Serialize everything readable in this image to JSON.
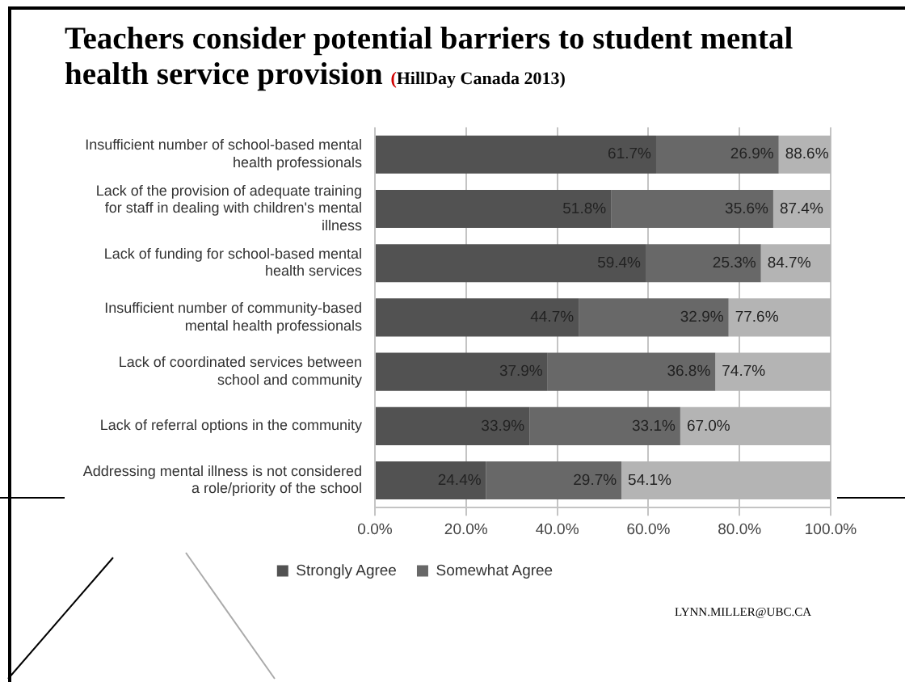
{
  "chart_data": {
    "type": "bar",
    "orientation": "horizontal",
    "stacked": true,
    "title": "Teachers consider potential barriers to student mental health service provision",
    "subtitle": "(HillDay Canada 2013)",
    "categories": [
      "Insufficient number of school-based mental health professionals",
      "Lack of the provision of adequate training for staff in dealing with children's mental illness",
      "Lack of funding for school-based mental health services",
      "Insufficient number of community-based mental health professionals",
      "Lack of coordinated services between school and community",
      "Lack of referral options in the community",
      "Addressing mental illness is not considered a role/priority of the school"
    ],
    "series": [
      {
        "name": "Strongly Agree",
        "color": "#525252",
        "values": [
          61.7,
          51.8,
          59.4,
          44.7,
          37.9,
          33.9,
          24.4
        ],
        "value_labels": [
          "61.7%",
          "51.8%",
          "59.4%",
          "44.7%",
          "37.9%",
          "33.9%",
          "24.4%"
        ]
      },
      {
        "name": "Somewhat Agree",
        "color": "#686868",
        "values": [
          26.9,
          35.6,
          25.3,
          32.9,
          36.8,
          33.1,
          29.7
        ],
        "value_labels": [
          "26.9%",
          "35.6%",
          "25.3%",
          "32.9%",
          "36.8%",
          "33.1%",
          "29.7%"
        ]
      },
      {
        "color": "#b4b4b4",
        "values": [
          11.4,
          12.6,
          15.3,
          22.4,
          25.3,
          33.0,
          45.9
        ]
      }
    ],
    "xlim": [
      0,
      100
    ],
    "xticks": [
      {
        "value": 0,
        "label": "0.0%"
      },
      {
        "value": 20,
        "label": "20.0%"
      },
      {
        "value": 40,
        "label": "40.0%"
      },
      {
        "value": 60,
        "label": "60.0%"
      },
      {
        "value": 80,
        "label": "80.0%"
      },
      {
        "value": 100,
        "label": "100.0%"
      }
    ],
    "grid": "x",
    "legend": "bottom",
    "annotations": [
      {
        "text": "88.6%",
        "x": 88.6,
        "y": "Insufficient number of school-based mental health professionals"
      },
      {
        "text": "87.4%",
        "x": 87.4,
        "y": "Lack of the provision of adequate training for staff in dealing with children's mental illness"
      },
      {
        "text": "84.7%",
        "x": 84.7,
        "y": "Lack of funding for school-based mental health services"
      },
      {
        "text": "77.6%",
        "x": 77.6,
        "y": "Insufficient number of community-based mental health professionals"
      },
      {
        "text": "74.7%",
        "x": 74.7,
        "y": "Lack of coordinated services between school and community"
      },
      {
        "text": "67.0%",
        "x": 67.0,
        "y": "Lack of referral options in the community"
      },
      {
        "text": "54.1%",
        "x": 54.1,
        "y": "Addressing mental illness is not considered a role/priority of the school"
      },
      "LYNN.MILLER@UBC.CA"
    ]
  }
}
